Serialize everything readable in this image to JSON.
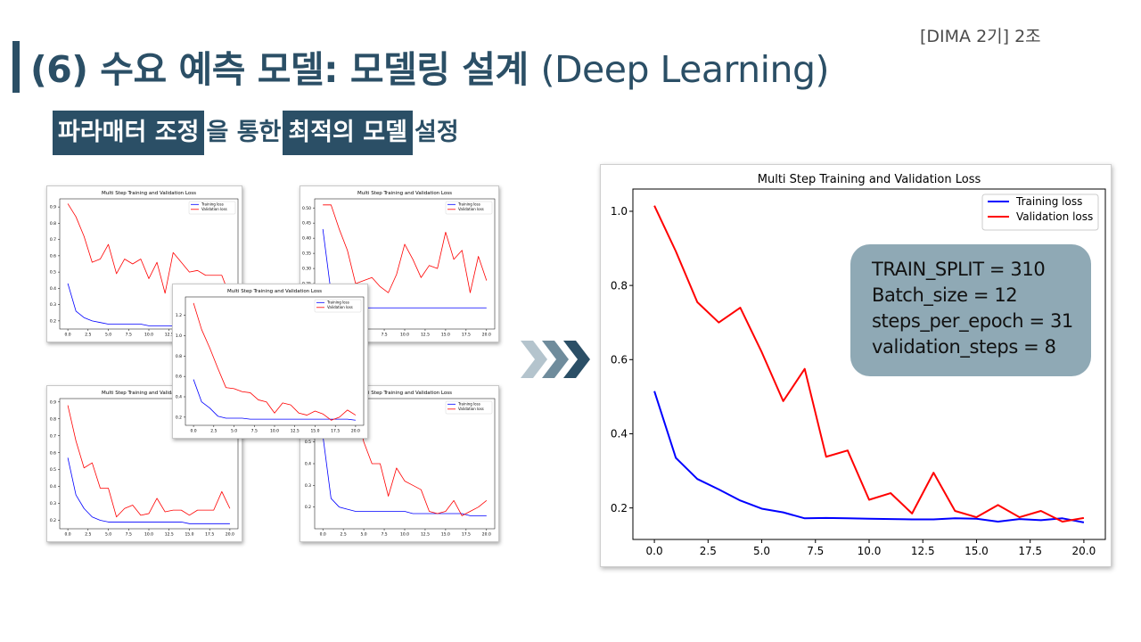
{
  "slide": {
    "team_tag": "[DIMA 2기] 2조",
    "title_main": "(6) 수요 예측 모델: 모델링 설계",
    "title_suffix": "(Deep Learning)",
    "subtitle": {
      "hl1": "파라매터 조정",
      "plain1": "을 통한",
      "hl2": "최적의 모델",
      "plain2": "설정"
    }
  },
  "params": {
    "train_split": "TRAIN_SPLIT = 310",
    "batch_size": "Batch_size = 12",
    "steps_per_epoch": "steps_per_epoch = 31",
    "validation_steps": "validation_steps = 8"
  },
  "colors": {
    "accent": "#2b4f66",
    "training": "#0000ff",
    "validation": "#ff0000",
    "param_box": "#8fa9b5"
  },
  "chart_data": [
    {
      "id": "main",
      "type": "line",
      "title": "Multi Step Training and Validation Loss",
      "xlim": [
        -1,
        21
      ],
      "ylim": [
        0.115,
        1.06
      ],
      "xticks": [
        "0.0",
        "2.5",
        "5.0",
        "7.5",
        "10.0",
        "12.5",
        "15.0",
        "17.5",
        "20.0"
      ],
      "yticks": [
        "0.2",
        "0.4",
        "0.6",
        "0.8",
        "1.0"
      ],
      "legend_position": "top-right",
      "series": [
        {
          "name": "Training loss",
          "color": "#0000ff",
          "x": [
            0,
            1,
            2,
            3,
            4,
            5,
            6,
            7,
            8,
            9,
            10,
            11,
            12,
            13,
            14,
            15,
            16,
            17,
            18,
            19,
            20
          ],
          "values": [
            0.515,
            0.335,
            0.278,
            0.25,
            0.22,
            0.198,
            0.188,
            0.172,
            0.173,
            0.172,
            0.171,
            0.17,
            0.169,
            0.169,
            0.172,
            0.171,
            0.163,
            0.17,
            0.167,
            0.172,
            0.161
          ]
        },
        {
          "name": "Validation loss",
          "color": "#ff0000",
          "x": [
            0,
            1,
            2,
            3,
            4,
            5,
            6,
            7,
            8,
            9,
            10,
            11,
            12,
            13,
            14,
            15,
            16,
            17,
            18,
            19,
            20
          ],
          "values": [
            1.015,
            0.892,
            0.755,
            0.7,
            0.74,
            0.62,
            0.488,
            0.575,
            0.338,
            0.355,
            0.222,
            0.24,
            0.185,
            0.295,
            0.192,
            0.175,
            0.208,
            0.175,
            0.192,
            0.163,
            0.173
          ]
        }
      ]
    },
    {
      "id": "thumb-top-left",
      "type": "line",
      "title": "Multi Step Training and Validation Loss",
      "xlim": [
        -1,
        21
      ],
      "ylim": [
        0.15,
        0.95
      ],
      "xticks": [
        "0.0",
        "2.5",
        "5.0",
        "7.5",
        "10.0",
        "12.5",
        "15.0",
        "17.5",
        "20.0"
      ],
      "yticks": [
        "0.2",
        "0.3",
        "0.4",
        "0.5",
        "0.6",
        "0.7",
        "0.8",
        "0.9"
      ],
      "legend_position": "top-right",
      "series": [
        {
          "name": "Training loss",
          "color": "#0000ff",
          "x": [
            0,
            1,
            2,
            3,
            4,
            5,
            6,
            7,
            8,
            9,
            10,
            11,
            12,
            13,
            14,
            15,
            16,
            17,
            18,
            19,
            20
          ],
          "values": [
            0.43,
            0.26,
            0.22,
            0.2,
            0.19,
            0.18,
            0.18,
            0.18,
            0.18,
            0.18,
            0.17,
            0.17,
            0.17,
            0.17,
            0.17,
            0.17,
            0.17,
            0.17,
            0.17,
            0.17,
            0.17
          ]
        },
        {
          "name": "Validation loss",
          "color": "#ff0000",
          "x": [
            0,
            1,
            2,
            3,
            4,
            5,
            6,
            7,
            8,
            9,
            10,
            11,
            12,
            13,
            14,
            15,
            16,
            17,
            18,
            19,
            20
          ],
          "values": [
            0.92,
            0.84,
            0.72,
            0.56,
            0.58,
            0.67,
            0.49,
            0.58,
            0.55,
            0.58,
            0.46,
            0.56,
            0.37,
            0.62,
            0.56,
            0.5,
            0.51,
            0.48,
            0.48,
            0.48,
            0.35
          ]
        }
      ]
    },
    {
      "id": "thumb-top-right",
      "type": "line",
      "title": "Multi Step Training and Validation Loss",
      "xlim": [
        -1,
        21
      ],
      "ylim": [
        0.1,
        0.53
      ],
      "xticks": [
        "0.0",
        "2.5",
        "5.0",
        "7.5",
        "10.0",
        "12.5",
        "15.0",
        "17.5",
        "20.0"
      ],
      "yticks": [
        "0.15",
        "0.20",
        "0.25",
        "0.30",
        "0.35",
        "0.40",
        "0.45",
        "0.50"
      ],
      "legend_position": "top-right",
      "series": [
        {
          "name": "Training loss",
          "color": "#0000ff",
          "x": [
            0,
            1,
            2,
            3,
            4,
            5,
            6,
            7,
            8,
            9,
            10,
            11,
            12,
            13,
            14,
            15,
            16,
            17,
            18,
            19,
            20
          ],
          "values": [
            0.43,
            0.22,
            0.18,
            0.17,
            0.17,
            0.17,
            0.17,
            0.17,
            0.17,
            0.17,
            0.17,
            0.17,
            0.17,
            0.17,
            0.17,
            0.17,
            0.17,
            0.17,
            0.17,
            0.17,
            0.17
          ]
        },
        {
          "name": "Validation loss",
          "color": "#ff0000",
          "x": [
            0,
            1,
            2,
            3,
            4,
            5,
            6,
            7,
            8,
            9,
            10,
            11,
            12,
            13,
            14,
            15,
            16,
            17,
            18,
            19,
            20
          ],
          "values": [
            0.51,
            0.51,
            0.43,
            0.36,
            0.25,
            0.26,
            0.27,
            0.24,
            0.22,
            0.28,
            0.38,
            0.33,
            0.27,
            0.31,
            0.3,
            0.42,
            0.33,
            0.36,
            0.22,
            0.34,
            0.26
          ]
        }
      ]
    },
    {
      "id": "thumb-bottom-left",
      "type": "line",
      "title": "Multi Step Training and Validation Loss",
      "xlim": [
        -1,
        21
      ],
      "ylim": [
        0.15,
        0.92
      ],
      "xticks": [
        "0.0",
        "2.5",
        "5.0",
        "7.5",
        "10.0",
        "12.5",
        "15.0",
        "17.5",
        "20.0"
      ],
      "yticks": [
        "0.2",
        "0.3",
        "0.4",
        "0.5",
        "0.6",
        "0.7",
        "0.8",
        "0.9"
      ],
      "legend_position": "top-right",
      "series": [
        {
          "name": "Training loss",
          "color": "#0000ff",
          "x": [
            0,
            1,
            2,
            3,
            4,
            5,
            6,
            7,
            8,
            9,
            10,
            11,
            12,
            13,
            14,
            15,
            16,
            17,
            18,
            19,
            20
          ],
          "values": [
            0.57,
            0.35,
            0.27,
            0.22,
            0.2,
            0.19,
            0.19,
            0.19,
            0.19,
            0.19,
            0.19,
            0.19,
            0.19,
            0.19,
            0.19,
            0.18,
            0.18,
            0.18,
            0.18,
            0.18,
            0.18
          ]
        },
        {
          "name": "Validation loss",
          "color": "#ff0000",
          "x": [
            0,
            1,
            2,
            3,
            4,
            5,
            6,
            7,
            8,
            9,
            10,
            11,
            12,
            13,
            14,
            15,
            16,
            17,
            18,
            19,
            20
          ],
          "values": [
            0.88,
            0.67,
            0.51,
            0.54,
            0.39,
            0.39,
            0.22,
            0.27,
            0.29,
            0.23,
            0.24,
            0.33,
            0.25,
            0.26,
            0.26,
            0.23,
            0.26,
            0.26,
            0.26,
            0.37,
            0.27
          ]
        }
      ]
    },
    {
      "id": "thumb-bottom-right",
      "type": "line",
      "title": "Multi Step Training and Validation Loss",
      "xlim": [
        -1,
        21
      ],
      "ylim": [
        0.1,
        0.7
      ],
      "xticks": [
        "0.0",
        "2.5",
        "5.0",
        "7.5",
        "10.0",
        "12.5",
        "15.0",
        "17.5",
        "20.0"
      ],
      "yticks": [
        "0.2",
        "0.3",
        "0.4",
        "0.5",
        "0.6"
      ],
      "legend_position": "top-right",
      "series": [
        {
          "name": "Training loss",
          "color": "#0000ff",
          "x": [
            0,
            1,
            2,
            3,
            4,
            5,
            6,
            7,
            8,
            9,
            10,
            11,
            12,
            13,
            14,
            15,
            16,
            17,
            18,
            19,
            20
          ],
          "values": [
            0.53,
            0.24,
            0.2,
            0.19,
            0.18,
            0.18,
            0.18,
            0.18,
            0.18,
            0.18,
            0.18,
            0.17,
            0.17,
            0.17,
            0.17,
            0.17,
            0.17,
            0.17,
            0.16,
            0.16,
            0.16
          ]
        },
        {
          "name": "Validation loss",
          "color": "#ff0000",
          "x": [
            0,
            1,
            2,
            3,
            4,
            5,
            6,
            7,
            8,
            9,
            10,
            11,
            12,
            13,
            14,
            15,
            16,
            17,
            18,
            19,
            20
          ],
          "values": [
            0.72,
            0.7,
            0.68,
            0.72,
            0.66,
            0.5,
            0.4,
            0.4,
            0.25,
            0.38,
            0.32,
            0.3,
            0.28,
            0.18,
            0.17,
            0.18,
            0.23,
            0.16,
            0.18,
            0.2,
            0.23
          ]
        }
      ]
    },
    {
      "id": "thumb-center",
      "type": "line",
      "title": "Multi Step Training and Validation Loss",
      "xlim": [
        -1,
        21
      ],
      "ylim": [
        0.12,
        1.38
      ],
      "xticks": [
        "0.0",
        "2.5",
        "5.0",
        "7.5",
        "10.0",
        "12.5",
        "15.0",
        "17.5",
        "20.0"
      ],
      "yticks": [
        "0.2",
        "0.4",
        "0.6",
        "0.8",
        "1.0",
        "1.2"
      ],
      "legend_position": "top-right",
      "series": [
        {
          "name": "Training loss",
          "color": "#0000ff",
          "x": [
            0,
            1,
            2,
            3,
            4,
            5,
            6,
            7,
            8,
            9,
            10,
            11,
            12,
            13,
            14,
            15,
            16,
            17,
            18,
            19,
            20
          ],
          "values": [
            0.57,
            0.35,
            0.29,
            0.21,
            0.19,
            0.19,
            0.19,
            0.18,
            0.18,
            0.18,
            0.18,
            0.18,
            0.18,
            0.18,
            0.18,
            0.18,
            0.18,
            0.18,
            0.18,
            0.18,
            0.17
          ]
        },
        {
          "name": "Validation loss",
          "color": "#ff0000",
          "x": [
            0,
            1,
            2,
            3,
            4,
            5,
            6,
            7,
            8,
            9,
            10,
            11,
            12,
            13,
            14,
            15,
            16,
            17,
            18,
            19,
            20
          ],
          "values": [
            1.32,
            1.06,
            0.88,
            0.68,
            0.49,
            0.48,
            0.45,
            0.44,
            0.37,
            0.35,
            0.24,
            0.34,
            0.32,
            0.24,
            0.22,
            0.26,
            0.23,
            0.17,
            0.2,
            0.27,
            0.22
          ]
        }
      ]
    }
  ]
}
